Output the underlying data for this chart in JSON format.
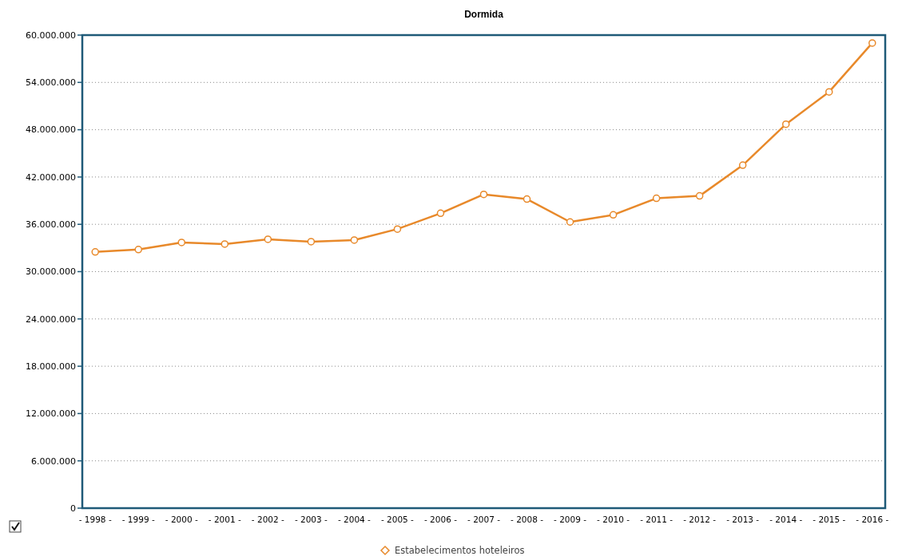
{
  "chart_data": {
    "type": "line",
    "title": "Dormida",
    "categories": [
      "- 1998 -",
      "- 1999 -",
      "- 2000 -",
      "- 2001 -",
      "- 2002 -",
      "- 2003 -",
      "- 2004 -",
      "- 2005 -",
      "- 2006 -",
      "- 2007 -",
      "- 2008 -",
      "- 2009 -",
      "- 2010 -",
      "- 2011 -",
      "- 2012 -",
      "- 2013 -",
      "- 2014 -",
      "- 2015 -",
      "- 2016 -"
    ],
    "series": [
      {
        "name": "Estabelecimentos hoteleiros",
        "color": "#e8892a",
        "values": [
          32500000,
          32800000,
          33700000,
          33500000,
          34100000,
          33800000,
          34000000,
          35400000,
          37400000,
          39800000,
          39200000,
          36300000,
          37200000,
          39300000,
          39600000,
          43500000,
          48700000,
          52800000,
          59000000
        ]
      }
    ],
    "ylim": [
      0,
      60000000
    ],
    "yticks": [
      {
        "value": 0,
        "label": "0"
      },
      {
        "value": 6000000,
        "label": "6.000.000"
      },
      {
        "value": 12000000,
        "label": "12.000.000"
      },
      {
        "value": 18000000,
        "label": "18.000.000"
      },
      {
        "value": 24000000,
        "label": "24.000.000"
      },
      {
        "value": 30000000,
        "label": "30.000.000"
      },
      {
        "value": 36000000,
        "label": "36.000.000"
      },
      {
        "value": 42000000,
        "label": "42.000.000"
      },
      {
        "value": 48000000,
        "label": "48.000.000"
      },
      {
        "value": 54000000,
        "label": "54.000.000"
      },
      {
        "value": 60000000,
        "label": "60.000.000"
      }
    ],
    "grid": "y",
    "legend": "bottom",
    "marker": "circle",
    "line_style": "solid"
  }
}
